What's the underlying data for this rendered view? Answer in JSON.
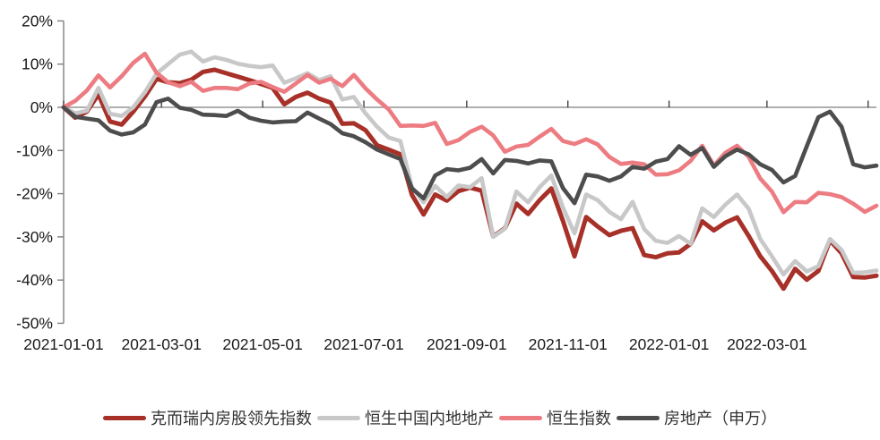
{
  "chart_data": {
    "type": "line",
    "title": "",
    "xlabel": "",
    "ylabel": "",
    "grid": false,
    "legend_position": "bottom",
    "ylim": [
      -50,
      20
    ],
    "y_ticks": [
      20,
      10,
      0,
      -10,
      -20,
      -30,
      -40,
      -50
    ],
    "y_tick_labels": [
      "20%",
      "10%",
      "0%",
      "-10%",
      "-20%",
      "-30%",
      "-40%",
      "-50%"
    ],
    "x_tick_labels": [
      "2021-01-01",
      "2021-03-01",
      "2021-05-01",
      "2021-07-01",
      "2021-09-01",
      "2021-11-01",
      "2022-01-01",
      "2022-03-01"
    ],
    "x_start_date": "2021-01-01",
    "x_interval": "weekly",
    "axis_color": "#7f7f7f",
    "label_color": "#1a1a1a",
    "x": [
      "2021-01-01",
      "2021-01-08",
      "2021-01-15",
      "2021-01-22",
      "2021-01-29",
      "2021-02-05",
      "2021-02-12",
      "2021-02-19",
      "2021-02-26",
      "2021-03-05",
      "2021-03-12",
      "2021-03-19",
      "2021-03-26",
      "2021-04-02",
      "2021-04-09",
      "2021-04-16",
      "2021-04-23",
      "2021-04-30",
      "2021-05-07",
      "2021-05-14",
      "2021-05-21",
      "2021-05-28",
      "2021-06-04",
      "2021-06-11",
      "2021-06-18",
      "2021-06-25",
      "2021-07-02",
      "2021-07-09",
      "2021-07-16",
      "2021-07-23",
      "2021-07-30",
      "2021-08-06",
      "2021-08-13",
      "2021-08-20",
      "2021-08-27",
      "2021-09-03",
      "2021-09-10",
      "2021-09-17",
      "2021-09-24",
      "2021-10-01",
      "2021-10-08",
      "2021-10-15",
      "2021-10-22",
      "2021-10-29",
      "2021-11-05",
      "2021-11-12",
      "2021-11-19",
      "2021-11-26",
      "2021-12-03",
      "2021-12-10",
      "2021-12-17",
      "2021-12-24",
      "2021-12-31",
      "2022-01-07",
      "2022-01-14",
      "2022-01-21",
      "2022-01-28",
      "2022-02-04",
      "2022-02-11",
      "2022-02-18",
      "2022-02-25",
      "2022-03-04",
      "2022-03-11",
      "2022-03-18",
      "2022-03-25",
      "2022-04-01",
      "2022-04-08",
      "2022-04-15",
      "2022-04-22",
      "2022-04-29",
      "2022-05-06"
    ],
    "series": [
      {
        "name": "克而瑞内房股领先指数",
        "color": "#A73028",
        "line_width": 5,
        "values": [
          0,
          -2.4,
          -1.0,
          3.0,
          -3.3,
          -4.0,
          -1.0,
          2.5,
          6.6,
          5.8,
          5.6,
          6.4,
          8.2,
          8.7,
          7.9,
          7.1,
          6.3,
          5.4,
          4.5,
          0.7,
          2.4,
          3.4,
          2.0,
          1.1,
          -3.8,
          -3.7,
          -5.3,
          -8.8,
          -9.8,
          -10.9,
          -20.3,
          -24.8,
          -20.2,
          -21.6,
          -19.4,
          -18.6,
          -19.3,
          -29.9,
          -28.0,
          -22.3,
          -24.7,
          -21.5,
          -18.8,
          -26.3,
          -34.5,
          -25.4,
          -27.6,
          -29.6,
          -28.6,
          -28.0,
          -34.2,
          -34.7,
          -33.8,
          -33.6,
          -31.6,
          -26.4,
          -28.5,
          -26.7,
          -25.5,
          -29.8,
          -34.5,
          -37.9,
          -42.0,
          -37.4,
          -39.9,
          -37.9,
          -30.8,
          -33.8,
          -39.3,
          -39.4,
          -39.0
        ]
      },
      {
        "name": "恒生中国内地地产",
        "color": "#C8C8C8",
        "line_width": 4.6,
        "values": [
          0,
          -1.4,
          -0.8,
          4.5,
          -1.5,
          -2.0,
          0.0,
          3.5,
          7.8,
          10.0,
          12.2,
          12.9,
          10.6,
          11.6,
          11.0,
          10.1,
          9.6,
          9.3,
          9.7,
          5.7,
          6.7,
          7.9,
          6.3,
          7.2,
          1.8,
          2.4,
          -1.4,
          -4.5,
          -7.0,
          -7.8,
          -18.5,
          -22.0,
          -18.2,
          -20.8,
          -18.1,
          -18.5,
          -16.4,
          -30.0,
          -28.1,
          -19.5,
          -22.0,
          -18.5,
          -15.8,
          -23.2,
          -29.2,
          -20.2,
          -21.5,
          -24.2,
          -25.9,
          -21.9,
          -28.2,
          -30.9,
          -31.4,
          -29.8,
          -31.6,
          -23.4,
          -25.4,
          -22.5,
          -20.2,
          -23.5,
          -30.5,
          -34.5,
          -38.7,
          -35.6,
          -38.0,
          -36.8,
          -30.5,
          -33.0,
          -38.3,
          -38.2,
          -37.8
        ]
      },
      {
        "name": "恒生指数",
        "color": "#ED7C82",
        "line_width": 4.6,
        "values": [
          0,
          1.5,
          3.9,
          7.4,
          4.6,
          7.2,
          10.3,
          12.4,
          8.0,
          5.8,
          4.9,
          5.9,
          3.8,
          4.5,
          4.5,
          4.2,
          5.5,
          5.9,
          4.7,
          3.6,
          5.5,
          7.5,
          5.7,
          6.6,
          4.9,
          7.5,
          4.4,
          1.8,
          -0.5,
          -4.3,
          -4.2,
          -4.3,
          -3.6,
          -8.5,
          -7.6,
          -5.7,
          -4.5,
          -6.5,
          -10.3,
          -9.1,
          -8.7,
          -6.8,
          -5.0,
          -7.8,
          -8.5,
          -7.4,
          -8.6,
          -11.5,
          -13.1,
          -12.8,
          -13.2,
          -15.6,
          -15.5,
          -14.6,
          -12.4,
          -8.9,
          -13.5,
          -10.5,
          -8.9,
          -11.5,
          -16.5,
          -19.5,
          -24.3,
          -21.9,
          -22.0,
          -19.8,
          -20.1,
          -20.8,
          -22.3,
          -24.2,
          -22.8
        ]
      },
      {
        "name": "房地产（申万）",
        "color": "#4D4D4D",
        "line_width": 4.6,
        "values": [
          0,
          -2.2,
          -2.6,
          -3.0,
          -5.4,
          -6.3,
          -5.8,
          -4.0,
          1.2,
          2.0,
          -0.1,
          -0.6,
          -1.7,
          -1.8,
          -2.0,
          -0.8,
          -2.4,
          -3.1,
          -3.5,
          -3.3,
          -3.2,
          -1.2,
          -2.6,
          -3.9,
          -6.0,
          -6.7,
          -8.1,
          -9.8,
          -10.9,
          -12.0,
          -18.8,
          -21.1,
          -15.8,
          -14.3,
          -14.6,
          -14.0,
          -12.0,
          -15.3,
          -12.2,
          -12.4,
          -13.0,
          -12.3,
          -12.5,
          -18.7,
          -22.2,
          -15.6,
          -16.0,
          -17.0,
          -16.0,
          -13.8,
          -14.2,
          -12.6,
          -12.0,
          -9.0,
          -11.0,
          -9.4,
          -13.8,
          -11.3,
          -9.8,
          -10.9,
          -13.2,
          -14.5,
          -17.4,
          -15.9,
          -9.0,
          -2.3,
          -1.0,
          -4.5,
          -13.2,
          -13.9,
          -13.5
        ]
      }
    ]
  }
}
